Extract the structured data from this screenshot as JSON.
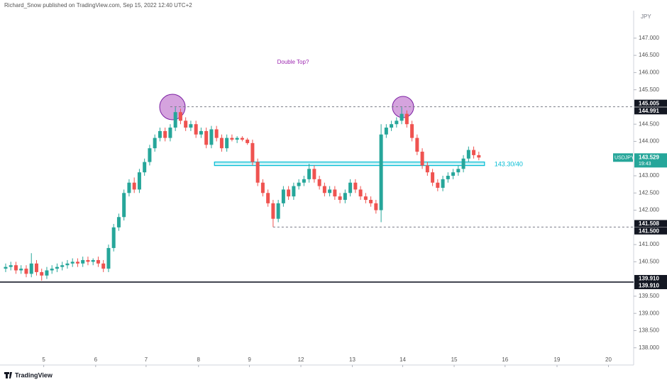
{
  "header": {
    "publisher": "Richard_Snow published on TradingView.com, Sep 15, 2022 12:40 UTC+2"
  },
  "chart_data": {
    "type": "candlestick",
    "annotation": "Double Top?",
    "currency": "JPY",
    "up_color": "#26a69a",
    "down_color": "#ef5350",
    "grid": false,
    "xlim": [
      -1.1,
      122.1
    ],
    "ylim": [
      137.5,
      147.8
    ],
    "xticks": [
      {
        "value": 7.4,
        "label": "5"
      },
      {
        "value": 17.5,
        "label": "6"
      },
      {
        "value": 27.3,
        "label": "7"
      },
      {
        "value": 37.5,
        "label": "8"
      },
      {
        "value": 47.4,
        "label": "9"
      },
      {
        "value": 57.4,
        "label": "12"
      },
      {
        "value": 67.4,
        "label": "13"
      },
      {
        "value": 77.2,
        "label": "14"
      },
      {
        "value": 87.2,
        "label": "15"
      },
      {
        "value": 97.1,
        "label": "16"
      },
      {
        "value": 107.2,
        "label": "19"
      },
      {
        "value": 117.2,
        "label": "20"
      }
    ],
    "yticks": [
      {
        "value": 147,
        "label": "147.000"
      },
      {
        "value": 146.5,
        "label": "146.500"
      },
      {
        "value": 146,
        "label": "146.000"
      },
      {
        "value": 145.5,
        "label": "145.500"
      },
      {
        "value": 144.5,
        "label": "144.500"
      },
      {
        "value": 144,
        "label": "144.000"
      },
      {
        "value": 143,
        "label": "143.000"
      },
      {
        "value": 142.5,
        "label": "142.500"
      },
      {
        "value": 142,
        "label": "142.000"
      },
      {
        "value": 141,
        "label": "141.000"
      },
      {
        "value": 140.5,
        "label": "140.500"
      },
      {
        "value": 139.5,
        "label": "139.500"
      },
      {
        "value": 139,
        "label": "139.000"
      },
      {
        "value": 138.5,
        "label": "138.500"
      },
      {
        "value": 138,
        "label": "138.000"
      }
    ],
    "x": [
      0,
      1,
      2,
      3,
      4,
      5,
      6,
      7,
      8,
      9,
      10,
      11,
      12,
      13,
      14,
      15,
      16,
      17,
      18,
      19,
      20,
      21,
      22,
      23,
      24,
      25,
      26,
      27,
      28,
      29,
      30,
      31,
      32,
      33,
      34,
      35,
      36,
      37,
      38,
      39,
      40,
      41,
      42,
      43,
      44,
      45,
      46,
      47,
      48,
      49,
      50,
      51,
      52,
      53,
      54,
      55,
      56,
      57,
      58,
      59,
      60,
      61,
      62,
      63,
      64,
      65,
      66,
      67,
      68,
      69,
      70,
      71,
      72,
      73,
      74,
      75,
      76,
      77,
      78,
      79,
      80,
      81,
      82,
      83,
      84,
      85,
      86,
      87,
      88,
      89,
      90,
      91,
      92
    ],
    "open": [
      140.3,
      140.35,
      140.4,
      140.25,
      140.3,
      140.15,
      140.45,
      140.2,
      140.1,
      140.25,
      140.3,
      140.35,
      140.4,
      140.45,
      140.5,
      140.45,
      140.55,
      140.5,
      140.55,
      140.45,
      140.3,
      140.9,
      141.5,
      141.8,
      142.5,
      142.8,
      142.6,
      143.1,
      143.4,
      143.8,
      144.1,
      144.3,
      144.1,
      144.4,
      144.85,
      144.6,
      144.4,
      144.5,
      144.2,
      144.3,
      143.9,
      144.35,
      144.1,
      143.8,
      144.1,
      144.05,
      144.1,
      144.05,
      143.95,
      143.4,
      142.8,
      142.5,
      142.2,
      141.75,
      142.2,
      142.6,
      142.4,
      142.7,
      142.8,
      142.9,
      143.2,
      142.9,
      142.7,
      142.5,
      142.6,
      142.4,
      142.3,
      142.5,
      142.8,
      142.6,
      142.4,
      142.3,
      142.2,
      142.0,
      144.2,
      144.4,
      144.5,
      144.6,
      144.8,
      144.5,
      144.1,
      143.7,
      143.3,
      143.1,
      142.8,
      142.65,
      142.9,
      143.0,
      143.1,
      143.2,
      143.5,
      143.75,
      143.6
    ],
    "high": [
      140.45,
      140.5,
      140.5,
      140.4,
      140.4,
      140.75,
      140.55,
      140.3,
      140.35,
      140.4,
      140.45,
      140.5,
      140.55,
      140.6,
      140.6,
      140.65,
      140.65,
      140.6,
      140.65,
      140.55,
      141.0,
      141.6,
      141.9,
      142.6,
      142.9,
      142.95,
      143.2,
      143.5,
      143.9,
      144.2,
      144.4,
      144.4,
      144.5,
      144.99,
      144.95,
      144.7,
      144.6,
      144.6,
      144.4,
      144.4,
      144.45,
      144.45,
      144.2,
      144.2,
      144.2,
      144.15,
      144.15,
      144.1,
      144.05,
      143.5,
      142.9,
      142.6,
      142.3,
      142.3,
      142.7,
      142.7,
      142.8,
      142.9,
      143.0,
      143.35,
      143.3,
      143.0,
      142.8,
      142.7,
      142.7,
      142.5,
      142.6,
      142.9,
      142.9,
      142.7,
      142.5,
      142.4,
      142.3,
      144.5,
      144.5,
      144.6,
      144.7,
      144.99,
      144.9,
      144.6,
      144.2,
      143.8,
      143.4,
      143.2,
      142.9,
      143.0,
      143.1,
      143.2,
      143.3,
      143.6,
      143.85,
      143.85,
      143.7
    ],
    "low": [
      140.2,
      140.25,
      140.15,
      140.15,
      140.05,
      140.05,
      140.1,
      139.95,
      140.0,
      140.15,
      140.2,
      140.25,
      140.3,
      140.35,
      140.35,
      140.35,
      140.4,
      140.4,
      140.35,
      140.2,
      140.2,
      140.8,
      141.4,
      141.7,
      142.4,
      142.5,
      142.5,
      143.0,
      143.3,
      143.7,
      144.0,
      144.0,
      144.0,
      144.3,
      144.5,
      144.3,
      144.3,
      144.1,
      144.1,
      143.8,
      143.8,
      144.0,
      143.7,
      143.7,
      144.0,
      143.95,
      144.0,
      143.9,
      143.3,
      142.7,
      142.4,
      142.1,
      141.51,
      141.65,
      142.1,
      142.3,
      142.3,
      142.6,
      142.7,
      142.8,
      142.8,
      142.6,
      142.4,
      142.4,
      142.3,
      142.2,
      142.2,
      142.4,
      142.5,
      142.3,
      142.2,
      142.1,
      141.9,
      141.65,
      144.1,
      144.3,
      144.4,
      144.5,
      144.4,
      144.0,
      143.6,
      143.2,
      143.0,
      142.7,
      142.55,
      142.55,
      142.8,
      142.9,
      143.0,
      143.1,
      143.4,
      143.5,
      143.45
    ],
    "close": [
      140.35,
      140.4,
      140.25,
      140.3,
      140.15,
      140.45,
      140.2,
      140.1,
      140.25,
      140.3,
      140.35,
      140.4,
      140.45,
      140.5,
      140.45,
      140.55,
      140.5,
      140.55,
      140.45,
      140.3,
      140.9,
      141.5,
      141.8,
      142.5,
      142.8,
      142.6,
      143.1,
      143.4,
      143.8,
      144.1,
      144.3,
      144.1,
      144.4,
      144.85,
      144.6,
      144.4,
      144.5,
      144.2,
      144.3,
      143.9,
      144.35,
      144.1,
      143.8,
      144.1,
      144.05,
      144.1,
      144.05,
      143.95,
      143.4,
      142.8,
      142.5,
      142.2,
      141.75,
      142.2,
      142.6,
      142.4,
      142.7,
      142.8,
      142.9,
      143.2,
      142.9,
      142.7,
      142.5,
      142.6,
      142.4,
      142.3,
      142.5,
      142.8,
      142.6,
      142.4,
      142.3,
      142.2,
      142.0,
      144.2,
      144.4,
      144.5,
      144.6,
      144.8,
      144.5,
      144.1,
      143.7,
      143.3,
      143.1,
      142.8,
      142.65,
      142.9,
      143.0,
      143.1,
      143.2,
      143.5,
      143.75,
      143.6,
      143.53
    ],
    "levels": [
      {
        "value": 145.005,
        "x_start": 32,
        "style": "dashed",
        "color": "#787b86"
      },
      {
        "value": 141.508,
        "x_start": 52,
        "style": "dashed",
        "color": "#787b86"
      },
      {
        "value": 139.91,
        "x_start": -1.1,
        "style": "solid",
        "color": "#434651"
      }
    ],
    "zone": {
      "low": 143.3,
      "high": 143.4,
      "x_start": 40.6,
      "x_end": 93.1,
      "label": "143.30/40",
      "color": "#00bcd4"
    },
    "price_tags": [
      {
        "value": 145.005,
        "label": "145.005"
      },
      {
        "value": 144.991,
        "label": "144.991"
      },
      {
        "value": 141.508,
        "label": "141.508"
      },
      {
        "value": 141.5,
        "label": "141.500"
      },
      {
        "value": 139.91,
        "label": "139.910"
      },
      {
        "value": 139.91,
        "label": "139.910"
      }
    ],
    "last_price": {
      "symbol": "USDJPY",
      "value": 143.529,
      "label": "143.529",
      "countdown": "19:43",
      "color": "#26a69a"
    }
  },
  "footer": {
    "logo": "TradingView"
  }
}
